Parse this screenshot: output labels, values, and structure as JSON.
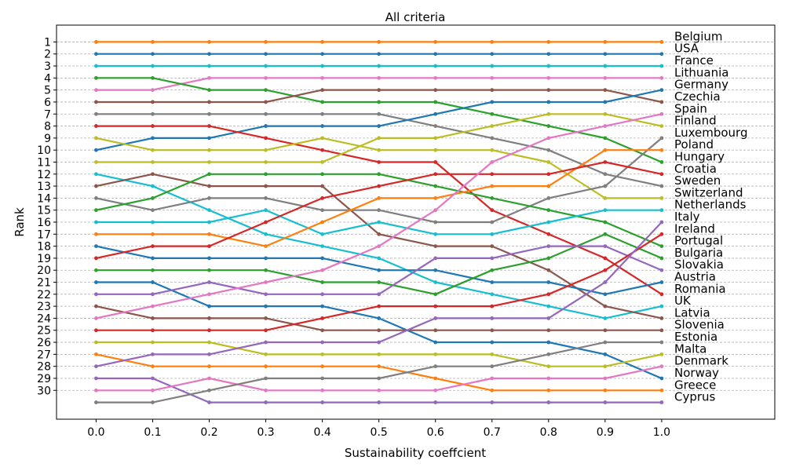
{
  "chart_data": {
    "type": "line",
    "title": "All criteria",
    "xlabel": "Sustainability coeffcient",
    "ylabel": "Rank",
    "x": [
      0.0,
      0.1,
      0.2,
      0.3,
      0.4,
      0.5,
      0.6,
      0.7,
      0.8,
      0.9,
      1.0
    ],
    "x_tick_labels": [
      "0.0",
      "0.1",
      "0.2",
      "0.3",
      "0.4",
      "0.5",
      "0.6",
      "0.7",
      "0.8",
      "0.9",
      "1.0"
    ],
    "y_tick_labels": [
      "1",
      "2",
      "3",
      "4",
      "5",
      "6",
      "7",
      "8",
      "9",
      "10",
      "11",
      "12",
      "13",
      "14",
      "15",
      "16",
      "17",
      "18",
      "19",
      "20",
      "21",
      "22",
      "23",
      "24",
      "25",
      "26",
      "27",
      "28",
      "29",
      "30"
    ],
    "ylim": [
      32.4,
      -0.4
    ],
    "xlim": [
      -0.07,
      1.2
    ],
    "grid": "horizontal dashed",
    "labels": [
      "Belgium",
      "USA",
      "France",
      "Lithuania",
      "Germany",
      "Czechia",
      "Spain",
      "Finland",
      "Luxembourg",
      "Poland",
      "Hungary",
      "Croatia",
      "Sweden",
      "Switzerland",
      "Netherlands",
      "Italy",
      "Ireland",
      "Portugal",
      "Bulgaria",
      "Slovakia",
      "Austria",
      "Romania",
      "UK",
      "Latvia",
      "Slovenia",
      "Estonia",
      "Malta",
      "Denmark",
      "Norway",
      "Greece",
      "Cyprus"
    ],
    "series": [
      {
        "color": "#ff7f0e",
        "values": [
          1,
          1,
          1,
          1,
          1,
          1,
          1,
          1,
          1,
          1,
          1
        ]
      },
      {
        "color": "#1f77b4",
        "values": [
          2,
          2,
          2,
          2,
          2,
          2,
          2,
          2,
          2,
          2,
          2
        ]
      },
      {
        "color": "#17becf",
        "values": [
          3,
          3,
          3,
          3,
          3,
          3,
          3,
          3,
          3,
          3,
          3
        ]
      },
      {
        "color": "#e377c2",
        "values": [
          5,
          5,
          4,
          4,
          4,
          4,
          4,
          4,
          4,
          4,
          4
        ]
      },
      {
        "color": "#2ca02c",
        "values": [
          4,
          4,
          5,
          5,
          6,
          6,
          6,
          7,
          8,
          9,
          11
        ]
      },
      {
        "color": "#8c564b",
        "values": [
          6,
          6,
          6,
          6,
          5,
          5,
          5,
          5,
          5,
          5,
          6
        ]
      },
      {
        "color": "#7f7f7f",
        "values": [
          7,
          7,
          7,
          7,
          7,
          7,
          8,
          9,
          10,
          12,
          13
        ]
      },
      {
        "color": "#1f77b4",
        "values": [
          10,
          9,
          9,
          8,
          8,
          8,
          7,
          6,
          6,
          6,
          5
        ]
      },
      {
        "color": "#d62728",
        "values": [
          8,
          8,
          8,
          9,
          10,
          11,
          11,
          15,
          17,
          19,
          22
        ]
      },
      {
        "color": "#bcbd22",
        "values": [
          9,
          10,
          10,
          10,
          9,
          10,
          10,
          10,
          11,
          14,
          14
        ]
      },
      {
        "color": "#bcbd22",
        "values": [
          11,
          11,
          11,
          11,
          11,
          9,
          9,
          8,
          7,
          7,
          8
        ]
      },
      {
        "color": "#17becf",
        "values": [
          12,
          13,
          15,
          17,
          18,
          19,
          21,
          22,
          23,
          24,
          23
        ]
      },
      {
        "color": "#8c564b",
        "values": [
          13,
          12,
          13,
          13,
          13,
          17,
          18,
          18,
          20,
          23,
          24
        ]
      },
      {
        "color": "#7f7f7f",
        "values": [
          14,
          15,
          14,
          14,
          15,
          15,
          16,
          16,
          14,
          13,
          9
        ]
      },
      {
        "color": "#2ca02c",
        "values": [
          15,
          14,
          12,
          12,
          12,
          12,
          13,
          14,
          15,
          16,
          18
        ]
      },
      {
        "color": "#17becf",
        "values": [
          16,
          16,
          16,
          15,
          17,
          16,
          17,
          17,
          16,
          15,
          15
        ]
      },
      {
        "color": "#ff7f0e",
        "values": [
          17,
          17,
          17,
          18,
          16,
          14,
          14,
          13,
          13,
          10,
          10
        ]
      },
      {
        "color": "#1f77b4",
        "values": [
          18,
          19,
          19,
          19,
          19,
          20,
          20,
          21,
          21,
          22,
          21
        ]
      },
      {
        "color": "#d62728",
        "values": [
          19,
          18,
          18,
          16,
          14,
          13,
          12,
          12,
          12,
          11,
          12
        ]
      },
      {
        "color": "#2ca02c",
        "values": [
          20,
          20,
          20,
          20,
          21,
          21,
          22,
          20,
          19,
          17,
          19
        ]
      },
      {
        "color": "#1f77b4",
        "values": [
          21,
          21,
          23,
          23,
          23,
          24,
          26,
          26,
          26,
          27,
          29
        ]
      },
      {
        "color": "#9467bd",
        "values": [
          22,
          22,
          21,
          22,
          22,
          22,
          19,
          19,
          18,
          18,
          20
        ]
      },
      {
        "color": "#8c564b",
        "values": [
          23,
          24,
          24,
          24,
          25,
          25,
          25,
          25,
          25,
          25,
          25
        ]
      },
      {
        "color": "#e377c2",
        "values": [
          24,
          23,
          22,
          21,
          20,
          18,
          15,
          11,
          9,
          8,
          7
        ]
      },
      {
        "color": "#d62728",
        "values": [
          25,
          25,
          25,
          25,
          24,
          23,
          23,
          23,
          22,
          20,
          17
        ]
      },
      {
        "color": "#bcbd22",
        "values": [
          26,
          26,
          26,
          27,
          27,
          27,
          27,
          27,
          28,
          28,
          27
        ]
      },
      {
        "color": "#ff7f0e",
        "values": [
          27,
          28,
          28,
          28,
          28,
          28,
          29,
          30,
          30,
          30,
          30
        ]
      },
      {
        "color": "#9467bd",
        "values": [
          28,
          27,
          27,
          26,
          26,
          26,
          24,
          24,
          24,
          21,
          16
        ]
      },
      {
        "color": "#9467bd",
        "values": [
          29,
          29,
          31,
          31,
          31,
          31,
          31,
          31,
          31,
          31,
          31
        ]
      },
      {
        "color": "#e377c2",
        "values": [
          30,
          30,
          29,
          30,
          30,
          30,
          30,
          29,
          29,
          29,
          28
        ]
      },
      {
        "color": "#7f7f7f",
        "values": [
          31,
          31,
          30,
          29,
          29,
          29,
          28,
          28,
          27,
          26,
          26
        ]
      }
    ]
  }
}
